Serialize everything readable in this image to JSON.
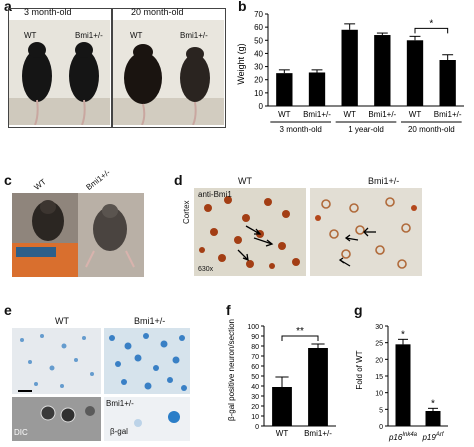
{
  "panel_a": {
    "letter": "a",
    "groups": [
      {
        "label": "3 month-old",
        "left": "WT",
        "right": "Bmi1+/-"
      },
      {
        "label": "20 month-old",
        "left": "WT",
        "right": "Bmi1+/-"
      }
    ]
  },
  "panel_b": {
    "letter": "b"
  },
  "panel_c": {
    "letter": "c",
    "left": "WT",
    "right": "Bmi1+/-"
  },
  "panel_d": {
    "letter": "d",
    "left": "WT",
    "right": "Bmi1+/-",
    "stain": "anti-Bmi1",
    "region": "Cortex",
    "magnification": "630x"
  },
  "panel_e": {
    "letter": "e",
    "left": "WT",
    "right": "Bmi1+/-",
    "inset_label": "Bmi1+/-",
    "dic": "DIC",
    "bgal": "β-gal"
  },
  "panel_f": {
    "letter": "f"
  },
  "panel_g": {
    "letter": "g"
  },
  "colors": {
    "bar": "#000000",
    "bgal_blue": "#2a7fc9",
    "brown": "#8a3a12"
  },
  "chart_data": [
    {
      "type": "bar",
      "panel": "b",
      "ylabel": "Weight (g)",
      "ylim": [
        0,
        70
      ],
      "yticks": [
        0,
        10,
        20,
        30,
        40,
        50,
        60,
        70
      ],
      "categories": [
        "WT",
        "Bmi1+/-",
        "WT",
        "Bmi1+/-",
        "WT",
        "Bmi1+/-"
      ],
      "groups": [
        "3 month-old",
        "1 year-old",
        "20 month-old"
      ],
      "values": [
        25,
        25.5,
        58,
        54,
        50,
        35
      ],
      "errors": [
        2.5,
        2,
        4.5,
        1.5,
        3,
        4
      ],
      "significance": [
        {
          "between": [
            4,
            5
          ],
          "mark": "*"
        }
      ]
    },
    {
      "type": "bar",
      "panel": "f",
      "ylabel": "β-gal positive neuron/section",
      "ylim": [
        0,
        100
      ],
      "yticks": [
        0,
        10,
        20,
        30,
        40,
        50,
        60,
        70,
        80,
        90,
        100
      ],
      "categories": [
        "WT",
        "Bmi1+/-"
      ],
      "values": [
        39,
        78
      ],
      "errors": [
        10,
        4
      ],
      "significance": [
        {
          "between": [
            0,
            1
          ],
          "mark": "**"
        }
      ]
    },
    {
      "type": "bar",
      "panel": "g",
      "ylabel": "Fold of WT",
      "ylim": [
        0,
        30
      ],
      "yticks": [
        0,
        5,
        10,
        15,
        20,
        25,
        30
      ],
      "categories": [
        "p16Ink4a",
        "p19Arf"
      ],
      "values": [
        24.5,
        4.5
      ],
      "errors": [
        1.5,
        0.8
      ],
      "significance": [
        {
          "bar": 0,
          "mark": "*"
        },
        {
          "bar": 1,
          "mark": "*"
        }
      ]
    }
  ]
}
